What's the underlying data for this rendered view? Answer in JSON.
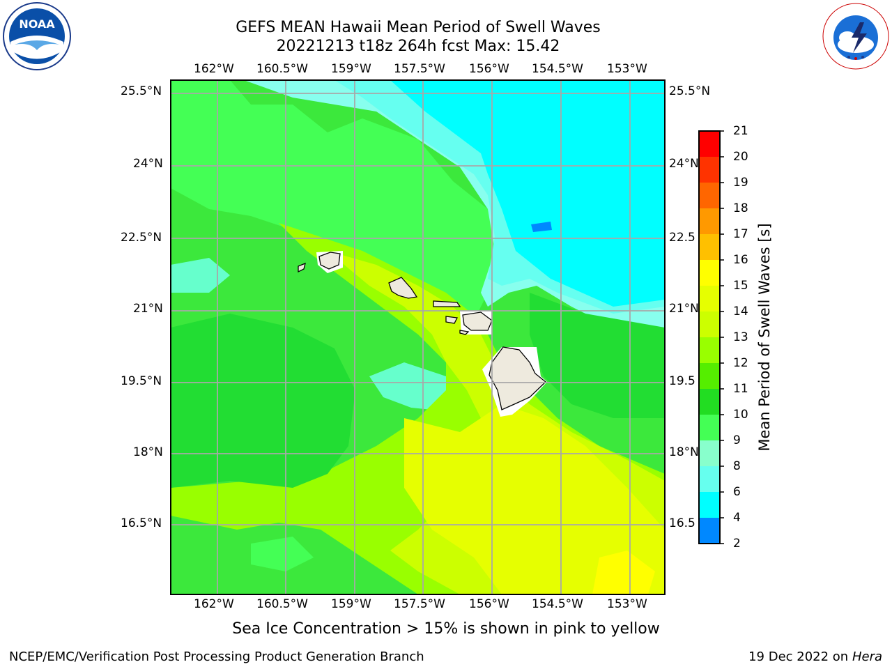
{
  "title_line1": "GEFS MEAN Hawaii Mean Period of Swell Waves",
  "title_line2": "20221213 t18z 264h fcst   Max: 15.42",
  "lon_labels": [
    "162°W",
    "160.5°W",
    "159°W",
    "157.5°W",
    "156°W",
    "154.5°W",
    "153°W"
  ],
  "lat_labels": [
    "25.5°N",
    "24°N",
    "22.5°N",
    "21°N",
    "19.5°N",
    "18°N",
    "16.5°N"
  ],
  "lat_labels_right": [
    "25.5°N",
    "24°N",
    "22.5",
    "21°N",
    "19.5",
    "18°N",
    "16.5"
  ],
  "colorbar": {
    "title": "Mean Period of Swell Waves [s]",
    "ticks": [
      "21",
      "20",
      "19",
      "18",
      "17",
      "16",
      "15",
      "14",
      "13",
      "12",
      "11",
      "10",
      "9",
      "8",
      "6",
      "4",
      "2"
    ],
    "colors": [
      "#ff0000",
      "#ff3300",
      "#ff6600",
      "#ff9900",
      "#ffc000",
      "#ffff00",
      "#e6ff00",
      "#ccff00",
      "#99ff00",
      "#55ee00",
      "#22dd22",
      "#44ff55",
      "#88ffcc",
      "#66ffee",
      "#00ffff",
      "#0088ff",
      "#0000ff"
    ]
  },
  "caption": "Sea Ice Concentration > 15% is shown in pink to yellow",
  "footer_left": "NCEP/EMC/Verification Post Processing Product Generation Branch",
  "footer_right_date": "19 Dec 2022 on",
  "footer_right_host": "Hera",
  "logos": {
    "left": "NOAA",
    "right": "NATIONAL WEATHER SERVICE"
  }
}
